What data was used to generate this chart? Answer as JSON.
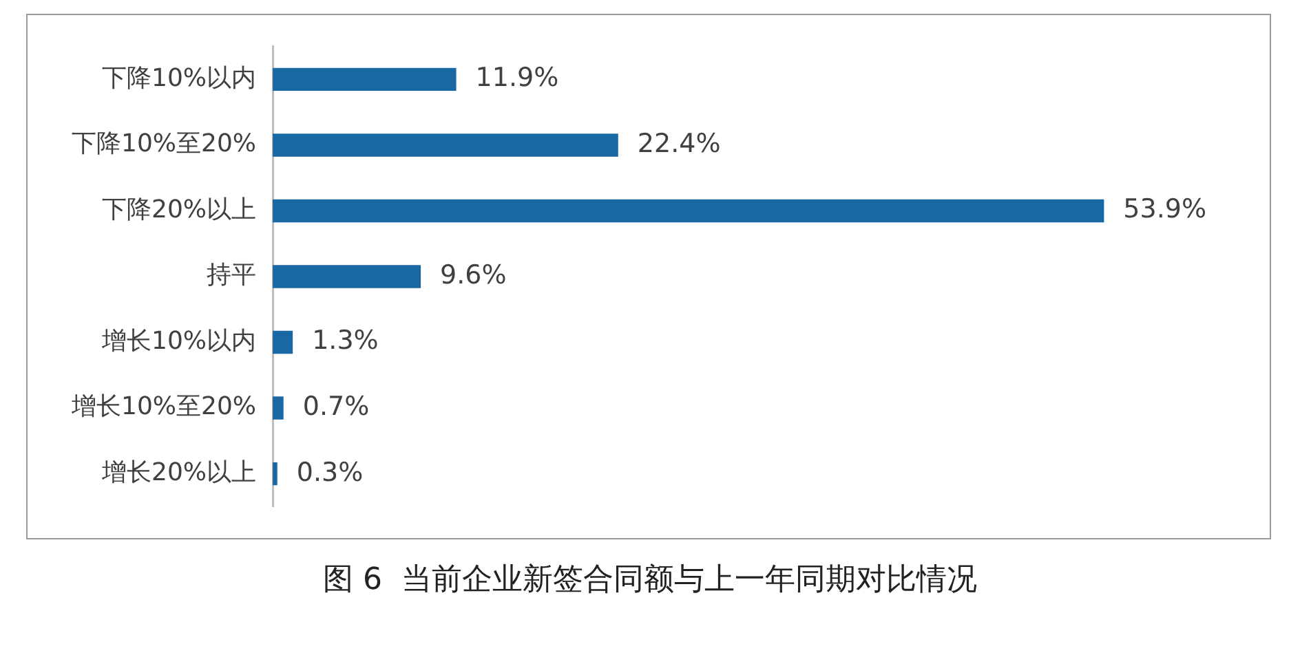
{
  "chart_data": {
    "type": "bar",
    "orientation": "horizontal",
    "title": "图 6  当前企业新签合同额与上一年同期对比情况",
    "categories": [
      "下降10%以内",
      "下降10%至20%",
      "下降20%以上",
      "持平",
      "增长10%以内",
      "增长10%至20%",
      "增长20%以上"
    ],
    "values": [
      11.9,
      22.4,
      53.9,
      9.6,
      1.3,
      0.7,
      0.3
    ],
    "value_labels": [
      "11.9%",
      "22.4%",
      "53.9%",
      "9.6%",
      "1.3%",
      "0.7%",
      "0.3%"
    ],
    "color": "#1a68a3",
    "legend": false,
    "tick_labels": "y"
  }
}
